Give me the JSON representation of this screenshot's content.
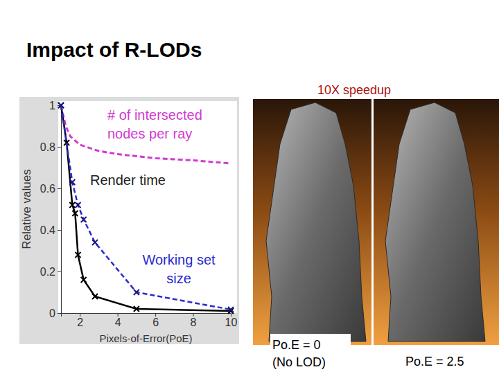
{
  "chart_data": {
    "type": "line",
    "xlabel": "Pixels-of-Error(PoE)",
    "ylabel": "Relative values",
    "xlim": [
      1,
      10
    ],
    "ylim": [
      0,
      1
    ],
    "xticks": [
      2,
      4,
      6,
      8,
      10
    ],
    "yticks": [
      0,
      0.2,
      0.4,
      0.6,
      0.8,
      1
    ],
    "grid": false,
    "series": [
      {
        "name": "# of intersected nodes per ray",
        "color": "#d23ad2",
        "line_style": "dashed",
        "marker": "none",
        "x": [
          1,
          1.25,
          1.5,
          2,
          3,
          4,
          5,
          6,
          8,
          10
        ],
        "values": [
          1,
          0.9,
          0.85,
          0.81,
          0.78,
          0.765,
          0.755,
          0.745,
          0.735,
          0.72
        ]
      },
      {
        "name": "Render time",
        "color": "#000000",
        "line_style": "solid",
        "marker": "x",
        "x": [
          1,
          1.3,
          1.6,
          1.75,
          1.9,
          2.2,
          2.8,
          5,
          10
        ],
        "values": [
          1,
          0.82,
          0.52,
          0.48,
          0.28,
          0.16,
          0.08,
          0.02,
          0.01
        ]
      },
      {
        "name": "Working set size",
        "color": "#2a2ad0",
        "line_style": "dashed",
        "marker": "x",
        "x": [
          1,
          1.6,
          1.9,
          2.2,
          2.8,
          5,
          10
        ],
        "values": [
          1,
          0.63,
          0.52,
          0.45,
          0.34,
          0.1,
          0.017
        ]
      }
    ]
  },
  "slide": {
    "title": "Impact of R-LODs",
    "annotation": "10X speedup",
    "captions": [
      [
        "Po.E = 0",
        "(No LOD)"
      ],
      [
        "Po.E = 2.5"
      ]
    ]
  }
}
